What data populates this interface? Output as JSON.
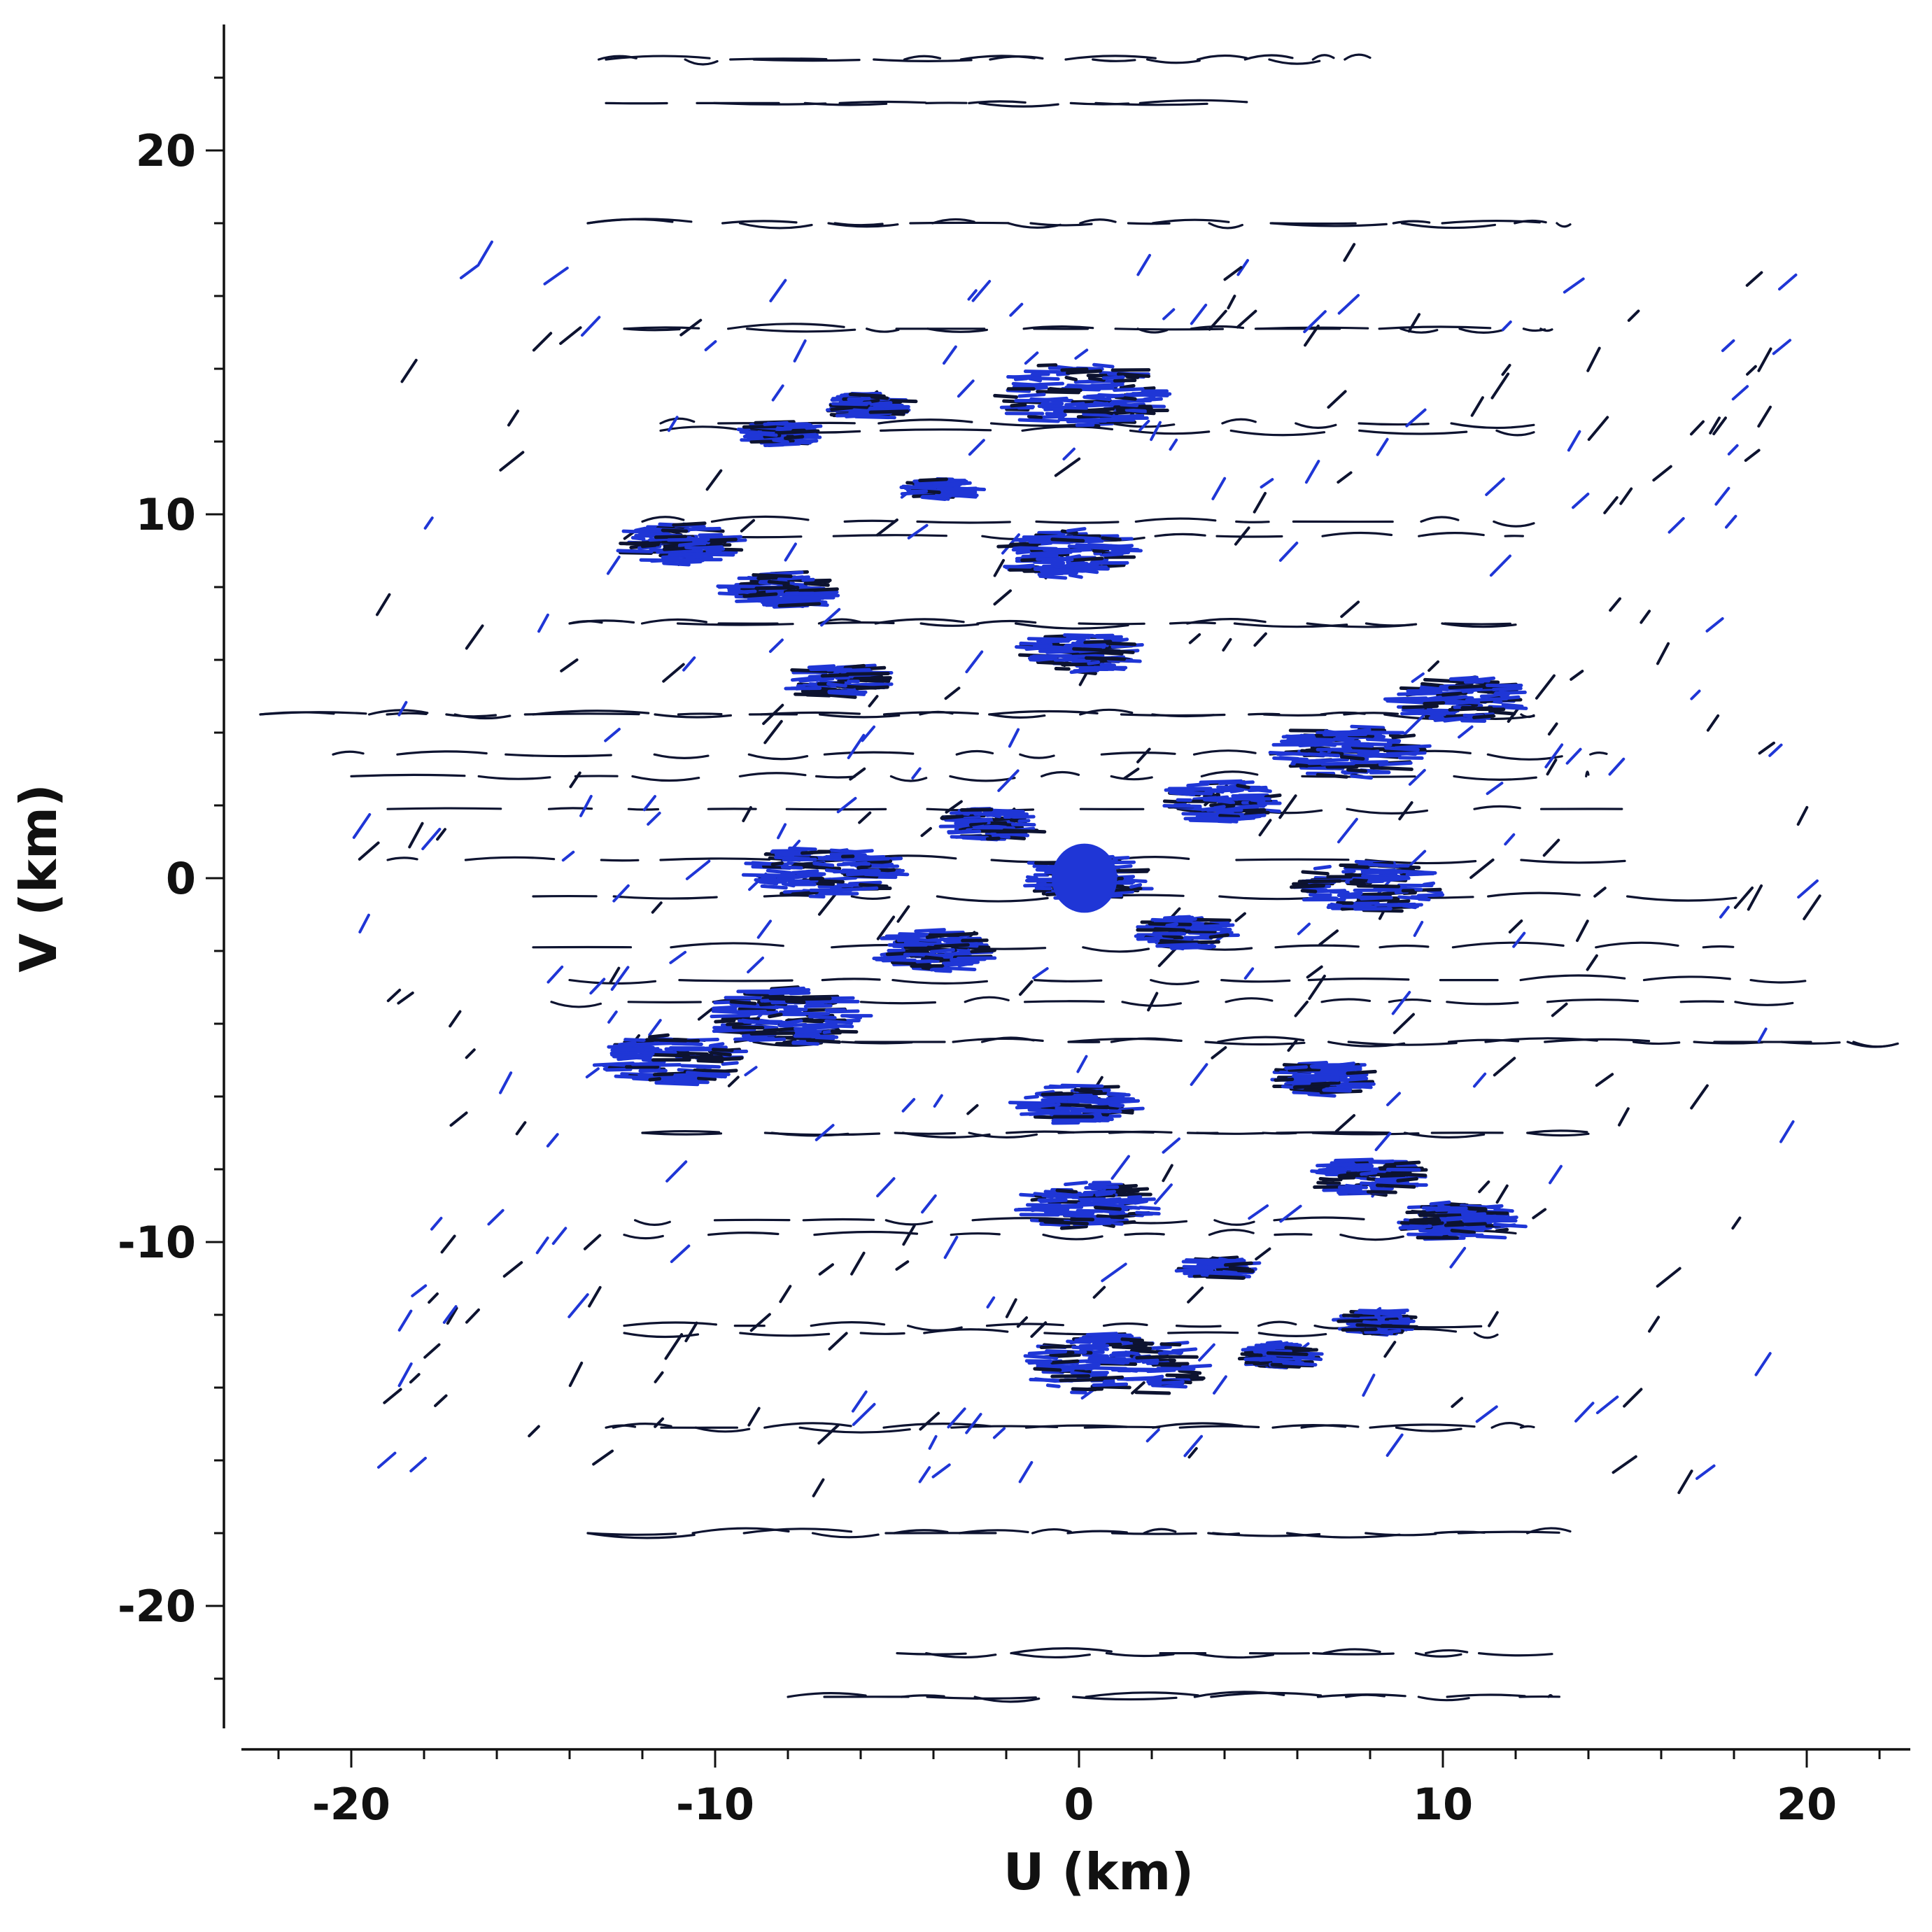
{
  "chart_data": {
    "type": "scatter",
    "title": "",
    "xlabel": "U (km)",
    "ylabel": "V (km)",
    "xlim": [
      -23.5,
      23.5
    ],
    "ylim": [
      -23.5,
      23.5
    ],
    "x_ticks": [
      -20,
      -10,
      0,
      10,
      20
    ],
    "y_ticks": [
      20,
      10,
      0,
      -10,
      -20
    ],
    "x_tick_labels": [
      "-20",
      "-10",
      "0",
      "10",
      "20"
    ],
    "y_tick_labels": [
      "20",
      "10",
      "0",
      "-10",
      "-20"
    ],
    "minor_tick_step": 2,
    "grid": false,
    "legend": "none",
    "colors": {
      "track": "#0d1330",
      "dense": "#1f36d6",
      "axis": "#111111"
    },
    "series": [
      {
        "kind": "uv-tracks",
        "tracks": [
          {
            "u": [
              -13.2,
              7.0
            ],
            "v": 22.5
          },
          {
            "u": [
              -10.5,
              4.2
            ],
            "v": 21.3
          },
          {
            "u": [
              -13.5,
              13.5
            ],
            "v": 18.0
          },
          {
            "u": [
              -12.5,
              12.8
            ],
            "v": 15.1
          },
          {
            "u": [
              -11.5,
              12.5
            ],
            "v": 12.3
          },
          {
            "u": [
              -11.8,
              12.2
            ],
            "v": 9.4
          },
          {
            "u": [
              -14.0,
              12.0
            ],
            "v": 7.0
          },
          {
            "u": [
              -22.5,
              12.5
            ],
            "v": 4.5
          },
          {
            "u": [
              -20.0,
              14.0
            ],
            "v": 2.8
          },
          {
            "u": [
              -19.0,
              15.0
            ],
            "v": 0.5
          },
          {
            "u": [
              -15.0,
              19.0
            ],
            "v": -1.9
          },
          {
            "u": [
              -14.5,
              20.5
            ],
            "v": -3.4
          },
          {
            "u": [
              -12.5,
              22.5
            ],
            "v": -4.5
          },
          {
            "u": [
              -12.0,
              14.0
            ],
            "v": -7.0
          },
          {
            "u": [
              -12.5,
              12.0
            ],
            "v": -9.8
          },
          {
            "u": [
              -12.5,
              11.5
            ],
            "v": -12.5
          },
          {
            "u": [
              -13.0,
              12.5
            ],
            "v": -15.1
          },
          {
            "u": [
              -13.5,
              13.5
            ],
            "v": -18.0
          },
          {
            "u": [
              -5.0,
              13.0
            ],
            "v": -21.3
          },
          {
            "u": [
              -8.0,
              13.0
            ],
            "v": -22.5
          }
        ]
      },
      {
        "kind": "dense-clusters",
        "points": [
          {
            "u": 0.2,
            "v": 0.0,
            "r": 1.1
          },
          {
            "u": 0.0,
            "v": 13.3,
            "r": 1.6
          },
          {
            "u": -0.3,
            "v": 8.9,
            "r": 1.2
          },
          {
            "u": 0.0,
            "v": 6.2,
            "r": 1.0
          },
          {
            "u": 0.0,
            "v": -6.2,
            "r": 1.0
          },
          {
            "u": 0.3,
            "v": -9.0,
            "r": 1.2
          },
          {
            "u": 1.0,
            "v": -13.4,
            "r": 1.6
          },
          {
            "u": -11.0,
            "v": 9.2,
            "r": 1.0
          },
          {
            "u": -8.2,
            "v": 7.9,
            "r": 0.9
          },
          {
            "u": -6.6,
            "v": 5.4,
            "r": 0.8
          },
          {
            "u": 10.5,
            "v": 4.9,
            "r": 1.1
          },
          {
            "u": 7.4,
            "v": 3.5,
            "r": 1.3
          },
          {
            "u": 4.0,
            "v": 2.1,
            "r": 1.0
          },
          {
            "u": -8.0,
            "v": -3.8,
            "r": 1.4
          },
          {
            "u": -11.2,
            "v": -5.0,
            "r": 1.2
          },
          {
            "u": -4.0,
            "v": -2.0,
            "r": 1.0
          },
          {
            "u": 6.7,
            "v": -5.5,
            "r": 0.8
          },
          {
            "u": 8.0,
            "v": -8.2,
            "r": 0.9
          },
          {
            "u": 10.5,
            "v": -9.4,
            "r": 1.0
          },
          {
            "u": -7.0,
            "v": 0.2,
            "r": 1.3
          },
          {
            "u": 8.0,
            "v": -0.2,
            "r": 1.3
          },
          {
            "u": -2.5,
            "v": 1.5,
            "r": 0.8
          },
          {
            "u": 3.0,
            "v": -1.5,
            "r": 0.8
          },
          {
            "u": -5.8,
            "v": 13.0,
            "r": 0.6
          },
          {
            "u": 5.5,
            "v": -13.1,
            "r": 0.6
          },
          {
            "u": -8.2,
            "v": 12.2,
            "r": 0.6
          },
          {
            "u": 8.2,
            "v": -12.2,
            "r": 0.6
          },
          {
            "u": -3.8,
            "v": 10.7,
            "r": 0.5
          },
          {
            "u": 3.8,
            "v": -10.7,
            "r": 0.5
          }
        ]
      }
    ]
  }
}
